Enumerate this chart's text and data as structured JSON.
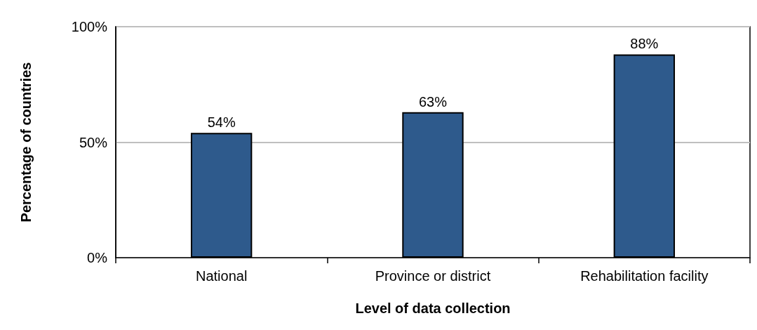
{
  "chart_data": {
    "type": "bar",
    "xlabel": "Level of data collection",
    "ylabel": "Percentage of countries",
    "categories": [
      "National",
      "Province or district",
      "Rehabilitation facility"
    ],
    "values": [
      54,
      63,
      88
    ],
    "color": "#2e5a8c",
    "value_labels": [
      "54%",
      "63%",
      "88%"
    ],
    "ylim": [
      0,
      100
    ],
    "yticks": [
      {
        "value": 0,
        "label": "0%"
      },
      {
        "value": 50,
        "label": "50%"
      },
      {
        "value": 100,
        "label": "100%"
      }
    ],
    "grid": "y"
  }
}
